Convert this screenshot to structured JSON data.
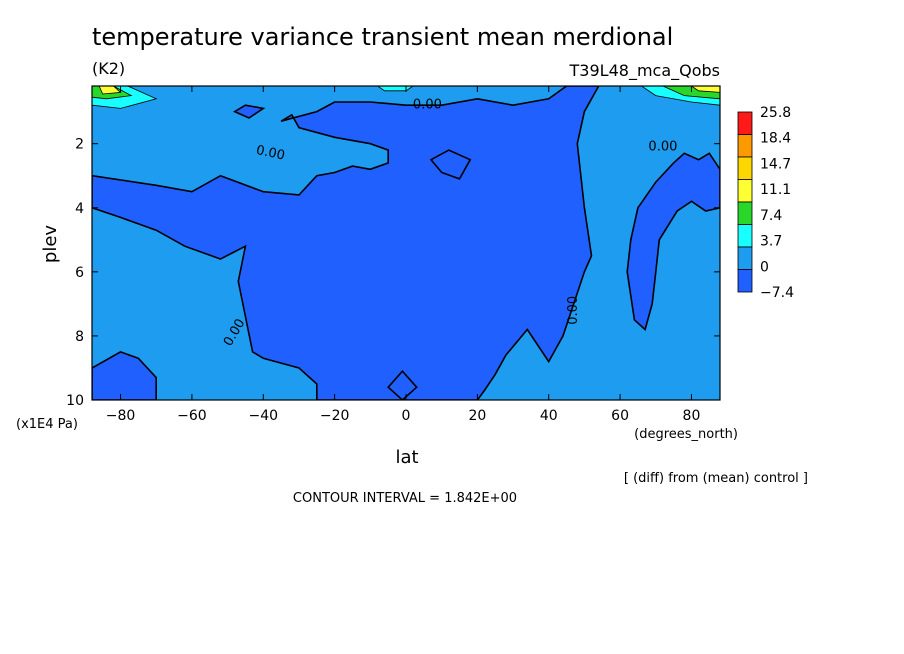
{
  "chart_data": {
    "type": "heatmap",
    "title": "temperature variance transient mean merdional",
    "units": "(K2)",
    "run_name": "T39L48_mca_Qobs",
    "xlabel": "lat",
    "xunits": "(degrees_north)",
    "ylabel": "plev",
    "yunits": "(x1E4 Pa)",
    "xlim": [
      -88,
      88
    ],
    "ylim": [
      10,
      0.2
    ],
    "xticks": [
      -80,
      -60,
      -40,
      -20,
      0,
      20,
      40,
      60,
      80
    ],
    "yticks": [
      2,
      4,
      6,
      8,
      10
    ],
    "footnote": "[ (diff) from (mean) control ]",
    "contour_interval": "CONTOUR INTERVAL = 1.842E+00",
    "colorbar": {
      "labels": [
        "25.8",
        "18.4",
        "14.7",
        "11.1",
        "7.4",
        "3.7",
        "0",
        "−7.4"
      ],
      "colors": [
        "#ff1a1a",
        "#ff9900",
        "#ffd700",
        "#ffff33",
        "#2bd62b",
        "#19ffff",
        "#1e9cf0",
        "#2060ff"
      ]
    },
    "background_color": "#1e9cf0",
    "contour_labels": [
      {
        "text": "0.00",
        "lat": 6,
        "plev": 0.8,
        "angle": 0
      },
      {
        "text": "0.00",
        "lat": -38,
        "plev": 2.3,
        "angle": 12
      },
      {
        "text": "0.00",
        "lat": 72,
        "plev": 2.1,
        "angle": 0
      },
      {
        "text": "0.00",
        "lat": -48,
        "plev": 7.9,
        "angle": -60
      },
      {
        "text": "0.00",
        "lat": 47,
        "plev": 7.2,
        "angle": -90
      }
    ],
    "negative_regions": [
      [
        [
          -88,
          3
        ],
        [
          -70,
          3.3
        ],
        [
          -60,
          3.5
        ],
        [
          -52,
          3
        ],
        [
          -40,
          3.5
        ],
        [
          -30,
          3.6
        ],
        [
          -25,
          3
        ],
        [
          -20,
          2.9
        ],
        [
          -15,
          2.7
        ],
        [
          -10,
          2.8
        ],
        [
          -5,
          2.6
        ],
        [
          -5,
          2.2
        ],
        [
          -10,
          2
        ],
        [
          -20,
          1.8
        ],
        [
          -30,
          1.5
        ],
        [
          -32,
          1.1
        ],
        [
          -35,
          1.3
        ],
        [
          -25,
          1.0
        ],
        [
          -20,
          0.7
        ],
        [
          -10,
          0.7
        ],
        [
          0,
          0.8
        ],
        [
          10,
          0.8
        ],
        [
          20,
          0.6
        ],
        [
          30,
          0.8
        ],
        [
          40,
          0.6
        ],
        [
          45,
          0.2
        ],
        [
          54,
          0.2
        ],
        [
          50,
          1
        ],
        [
          48,
          2
        ],
        [
          50,
          4
        ],
        [
          52,
          5.5
        ],
        [
          50,
          6
        ],
        [
          47,
          7
        ],
        [
          44,
          8
        ],
        [
          40,
          8.8
        ],
        [
          34,
          7.8
        ],
        [
          28,
          8.6
        ],
        [
          25,
          9.2
        ],
        [
          22,
          9.7
        ],
        [
          20,
          10
        ],
        [
          -25,
          10
        ],
        [
          -25,
          9.5
        ],
        [
          -30,
          9.0
        ],
        [
          -40,
          8.7
        ],
        [
          -43,
          8.5
        ],
        [
          -47,
          6.3
        ],
        [
          -45,
          5.2
        ],
        [
          -52,
          5.6
        ],
        [
          -62,
          5.2
        ],
        [
          -70,
          4.7
        ],
        [
          -80,
          4.3
        ],
        [
          -88,
          4
        ]
      ],
      [
        [
          -88,
          9
        ],
        [
          -80,
          8.5
        ],
        [
          -75,
          8.7
        ],
        [
          -70,
          9.3
        ],
        [
          -70,
          10
        ],
        [
          -88,
          10
        ]
      ],
      [
        [
          12,
          2.2
        ],
        [
          18,
          2.5
        ],
        [
          15,
          3.1
        ],
        [
          10,
          2.9
        ],
        [
          7,
          2.5
        ]
      ],
      [
        [
          85,
          2.3
        ],
        [
          82,
          2.5
        ],
        [
          78,
          2.3
        ],
        [
          75,
          2.6
        ],
        [
          70,
          3.2
        ],
        [
          65,
          4.0
        ],
        [
          63,
          5.0
        ],
        [
          62,
          6.0
        ],
        [
          64,
          7.5
        ],
        [
          67,
          7.8
        ],
        [
          69,
          7.0
        ],
        [
          70,
          6.0
        ],
        [
          71,
          5.0
        ],
        [
          76,
          4.1
        ],
        [
          80,
          3.8
        ],
        [
          84,
          4.1
        ],
        [
          88,
          4.0
        ],
        [
          88,
          2.8
        ]
      ],
      [
        [
          -1,
          9.1
        ],
        [
          3,
          9.6
        ],
        [
          -1,
          10
        ],
        [
          -5,
          9.6
        ]
      ],
      [
        [
          -48,
          1.0
        ],
        [
          -45,
          0.8
        ],
        [
          -40,
          0.9
        ],
        [
          -44,
          1.2
        ]
      ]
    ],
    "positive_regions": [
      {
        "level": "7.4",
        "color": "#19ffff",
        "points": [
          [
            -88,
            0.2
          ],
          [
            -78,
            0.2
          ],
          [
            -70,
            0.6
          ],
          [
            -80,
            0.9
          ],
          [
            -88,
            0.8
          ]
        ]
      },
      {
        "level": "11.1",
        "color": "#2bd62b",
        "points": [
          [
            -88,
            0.2
          ],
          [
            -82,
            0.2
          ],
          [
            -77,
            0.5
          ],
          [
            -84,
            0.6
          ],
          [
            -88,
            0.55
          ]
        ]
      },
      {
        "level": "14.7",
        "color": "#ffff33",
        "points": [
          [
            -86,
            0.2
          ],
          [
            -82,
            0.2
          ],
          [
            -80,
            0.4
          ],
          [
            -85,
            0.45
          ]
        ]
      },
      {
        "level": "7.4",
        "color": "#19ffff",
        "points": [
          [
            66,
            0.2
          ],
          [
            88,
            0.2
          ],
          [
            88,
            0.8
          ],
          [
            80,
            0.7
          ],
          [
            70,
            0.5
          ]
        ]
      },
      {
        "level": "11.1",
        "color": "#2bd62b",
        "points": [
          [
            72,
            0.2
          ],
          [
            88,
            0.2
          ],
          [
            88,
            0.6
          ],
          [
            78,
            0.5
          ]
        ]
      },
      {
        "level": "14.7",
        "color": "#ffff33",
        "points": [
          [
            80,
            0.2
          ],
          [
            88,
            0.2
          ],
          [
            88,
            0.4
          ],
          [
            82,
            0.35
          ]
        ]
      },
      {
        "level": "7.4",
        "color": "#19ffff",
        "points": [
          [
            -8,
            0.2
          ],
          [
            2,
            0.2
          ],
          [
            0,
            0.35
          ],
          [
            -6,
            0.35
          ]
        ]
      }
    ]
  }
}
